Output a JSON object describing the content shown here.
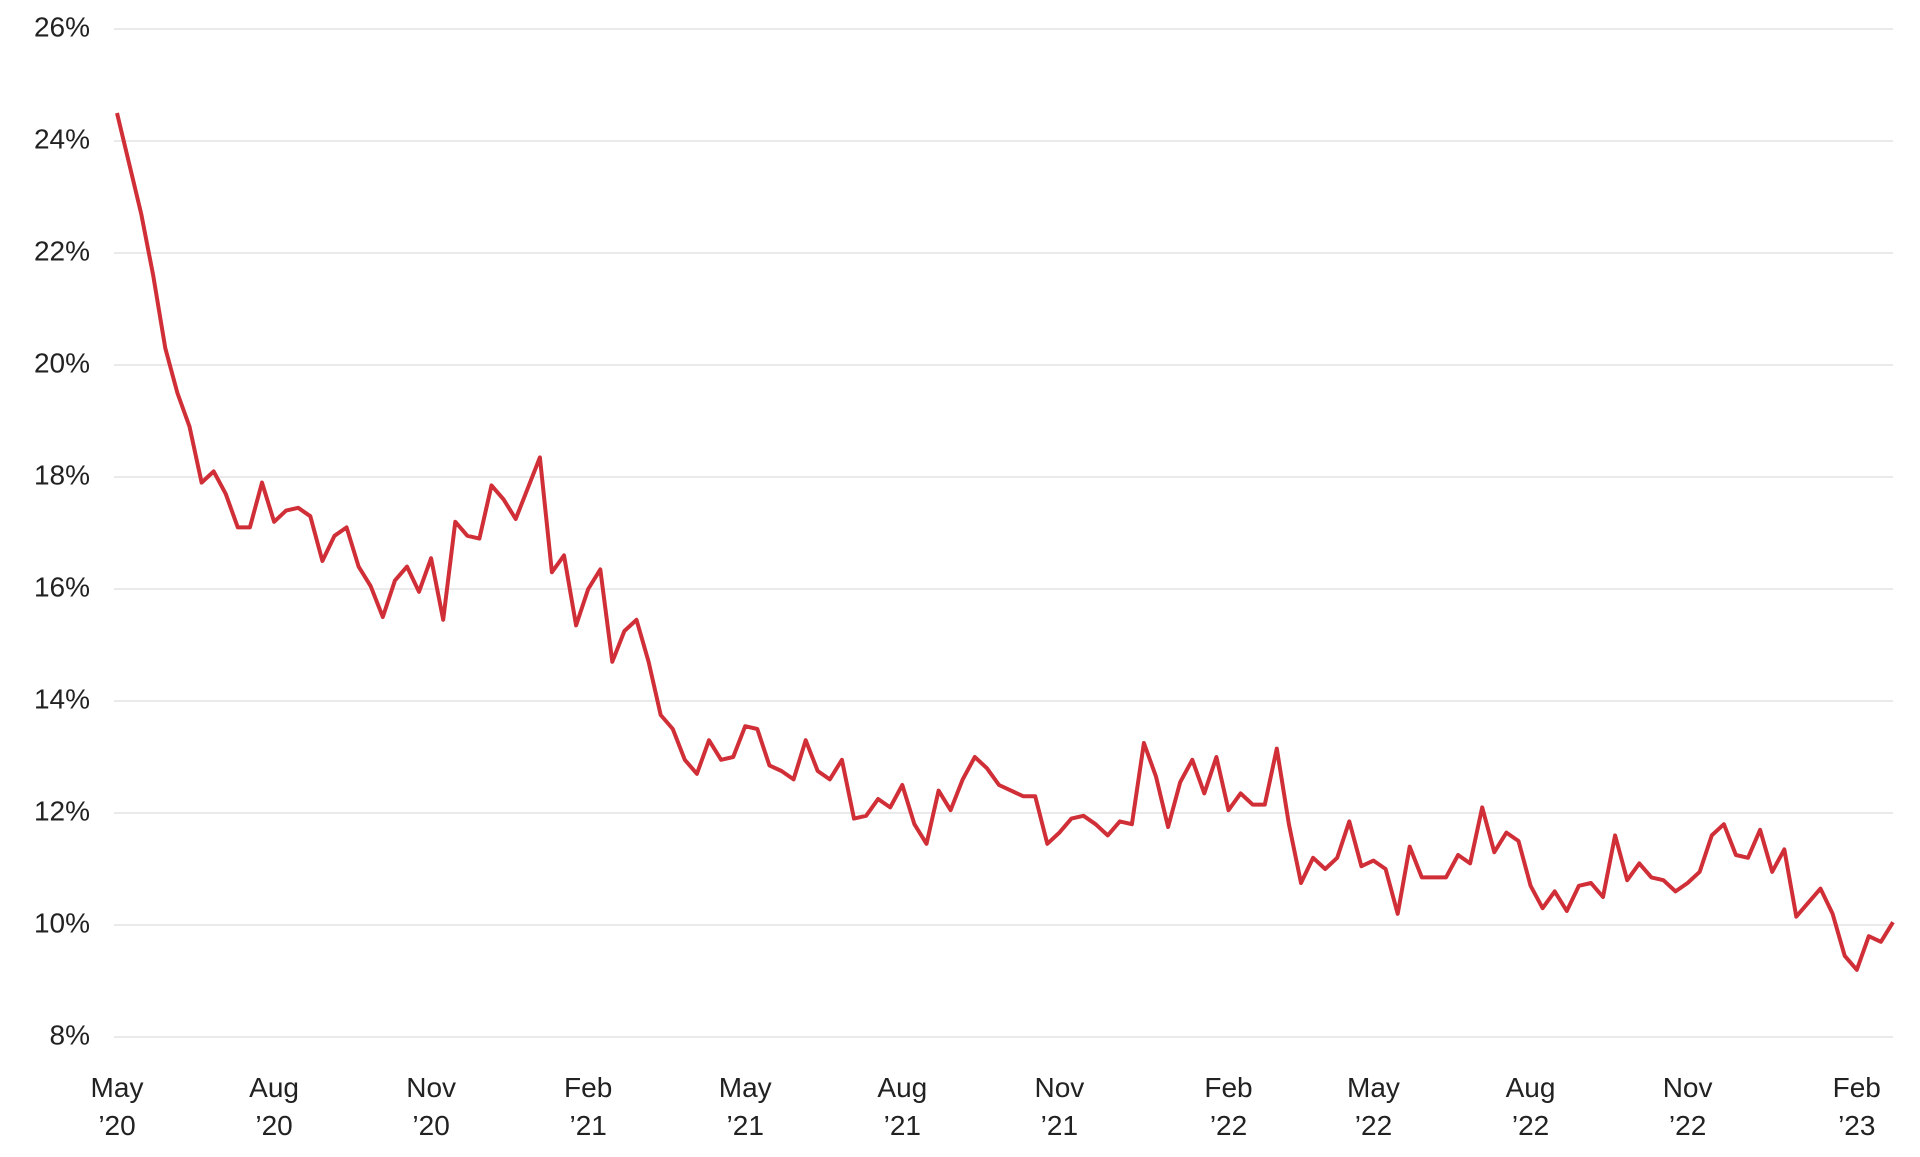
{
  "chart_data": {
    "type": "line",
    "color": "#d12f37",
    "grid": true,
    "ylim": [
      8,
      26
    ],
    "yticks": [
      {
        "value": 8,
        "label": "8%"
      },
      {
        "value": 10,
        "label": "10%"
      },
      {
        "value": 12,
        "label": "12%"
      },
      {
        "value": 14,
        "label": "14%"
      },
      {
        "value": 16,
        "label": "16%"
      },
      {
        "value": 18,
        "label": "18%"
      },
      {
        "value": 20,
        "label": "20%"
      },
      {
        "value": 22,
        "label": "22%"
      },
      {
        "value": 24,
        "label": "24%"
      },
      {
        "value": 26,
        "label": "26%"
      }
    ],
    "categories": [
      "May ’20",
      null,
      null,
      null,
      null,
      null,
      null,
      null,
      null,
      null,
      null,
      null,
      null,
      "Aug ’20",
      null,
      null,
      null,
      null,
      null,
      null,
      null,
      null,
      null,
      null,
      null,
      null,
      "Nov ’20",
      null,
      null,
      null,
      null,
      null,
      null,
      null,
      null,
      null,
      null,
      null,
      null,
      "Feb ’21",
      null,
      null,
      null,
      null,
      null,
      null,
      null,
      null,
      null,
      null,
      null,
      null,
      "May ’21",
      null,
      null,
      null,
      null,
      null,
      null,
      null,
      null,
      null,
      null,
      null,
      null,
      "Aug ’21",
      null,
      null,
      null,
      null,
      null,
      null,
      null,
      null,
      null,
      null,
      null,
      null,
      "Nov ’21",
      null,
      null,
      null,
      null,
      null,
      null,
      null,
      null,
      null,
      null,
      null,
      null,
      null,
      "Feb ’22",
      null,
      null,
      null,
      null,
      null,
      null,
      null,
      null,
      null,
      null,
      null,
      "May ’22",
      null,
      null,
      null,
      null,
      null,
      null,
      null,
      null,
      null,
      null,
      null,
      null,
      "Aug ’22",
      null,
      null,
      null,
      null,
      null,
      null,
      null,
      null,
      null,
      null,
      null,
      null,
      "Nov ’22",
      null,
      null,
      null,
      null,
      null,
      null,
      null,
      null,
      null,
      null,
      null,
      null,
      null,
      "Feb ’23",
      null,
      null,
      null
    ],
    "values": [
      24.5,
      23.6,
      22.7,
      21.6,
      20.3,
      19.5,
      18.9,
      17.9,
      18.1,
      17.7,
      17.1,
      17.1,
      17.9,
      17.2,
      17.4,
      17.45,
      17.3,
      16.5,
      16.95,
      17.1,
      16.4,
      16.05,
      15.5,
      16.15,
      16.4,
      15.95,
      16.55,
      15.45,
      17.2,
      16.95,
      16.9,
      17.85,
      17.6,
      17.25,
      17.8,
      18.35,
      16.3,
      16.6,
      15.35,
      16.0,
      16.35,
      14.7,
      15.25,
      15.45,
      14.7,
      13.75,
      13.5,
      12.95,
      12.7,
      13.3,
      12.95,
      13.0,
      13.55,
      13.5,
      12.85,
      12.75,
      12.6,
      13.3,
      12.75,
      12.6,
      12.95,
      11.9,
      11.95,
      12.25,
      12.1,
      12.5,
      11.8,
      11.45,
      12.4,
      12.05,
      12.6,
      13.0,
      12.8,
      12.5,
      12.4,
      12.3,
      12.3,
      11.45,
      11.65,
      11.9,
      11.95,
      11.8,
      11.6,
      11.85,
      11.8,
      13.25,
      12.65,
      11.75,
      12.55,
      12.95,
      12.35,
      13.0,
      12.05,
      12.35,
      12.15,
      12.15,
      13.15,
      11.8,
      10.75,
      11.2,
      11.0,
      11.2,
      11.85,
      11.05,
      11.15,
      11.0,
      10.2,
      11.4,
      10.85,
      10.85,
      10.85,
      11.25,
      11.1,
      12.1,
      11.3,
      11.65,
      11.5,
      10.7,
      10.3,
      10.6,
      10.25,
      10.7,
      10.75,
      10.5,
      11.6,
      10.8,
      11.1,
      10.85,
      10.8,
      10.6,
      10.75,
      10.95,
      11.6,
      11.8,
      11.25,
      11.2,
      11.7,
      10.95,
      11.35,
      10.15,
      10.4,
      10.65,
      10.2,
      9.45,
      9.2,
      9.8,
      9.7,
      10.05
    ]
  }
}
